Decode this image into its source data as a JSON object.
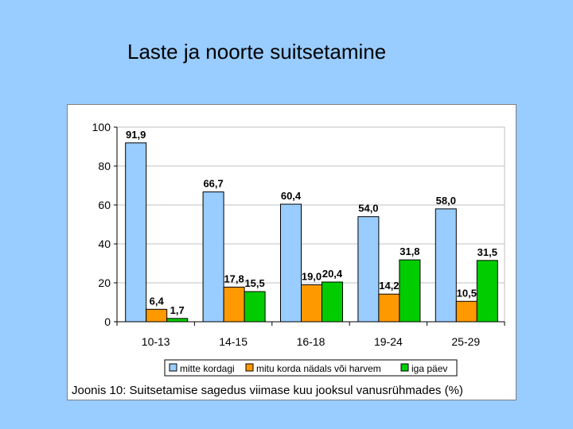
{
  "slide": {
    "title": "Laste ja noorte suitsetamine"
  },
  "chart_data": {
    "type": "bar",
    "categories": [
      "10-13",
      "14-15",
      "16-18",
      "19-24",
      "25-29"
    ],
    "series": [
      {
        "name": "mitte kordagi",
        "values": [
          91.9,
          66.7,
          60.4,
          54.0,
          58.0
        ],
        "labels": [
          "91,9",
          "66,7",
          "60,4",
          "54,0",
          "58,0"
        ],
        "color": "#99ccff"
      },
      {
        "name": "mitu korda nädals või harvem",
        "values": [
          6.4,
          17.8,
          19.0,
          14.2,
          10.5
        ],
        "labels": [
          "6,4",
          "17,8",
          "19,0",
          "14,2",
          "10,5"
        ],
        "color": "#ff9900"
      },
      {
        "name": "iga päev",
        "values": [
          1.7,
          15.5,
          20.4,
          31.8,
          31.5
        ],
        "labels": [
          "1,7",
          "15,5",
          "20,4",
          "31,8",
          "31,5"
        ],
        "color": "#00cc00"
      }
    ],
    "ylim": [
      0,
      100
    ],
    "yticks": [
      "0",
      "20",
      "40",
      "60",
      "80",
      "100"
    ],
    "grid": true,
    "legend_position": "bottom",
    "caption": "Joonis 10: Suitsetamise sagedus viimase kuu jooksul vanusrühmades (%)"
  }
}
